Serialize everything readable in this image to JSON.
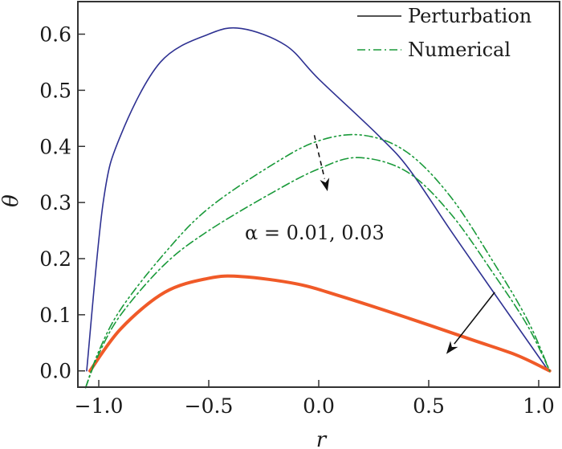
{
  "chart_data": {
    "type": "line",
    "xlabel": "r",
    "ylabel": "θ",
    "xlim": [
      -1.095,
      1.095
    ],
    "ylim": [
      -0.029,
      0.658
    ],
    "xticks": [
      -1.0,
      -0.5,
      0.0,
      0.5,
      1.0
    ],
    "xtick_labels": [
      "−1.0",
      "−0.5",
      "0.0",
      "0.5",
      "1.0"
    ],
    "yticks": [
      0.0,
      0.1,
      0.2,
      0.3,
      0.4,
      0.5,
      0.6
    ],
    "ytick_labels": [
      "0.0",
      "0.1",
      "0.2",
      "0.3",
      "0.4",
      "0.5",
      "0.6"
    ],
    "grid": false,
    "legend_position": "top-right",
    "legend": [
      {
        "label": "Perturbation",
        "style": "solid",
        "color": "#1a1a1a"
      },
      {
        "label": "Numerical",
        "style": "dashdot",
        "color": "#1a9a3a"
      }
    ],
    "annotation": "α = 0.01, 0.03",
    "series": [
      {
        "color": "#2e3192",
        "style": "solid",
        "width": 1.6,
        "x": [
          -1.055,
          -0.98,
          -0.9,
          -0.72,
          -0.5,
          -0.35,
          -0.15,
          0.0,
          0.27,
          0.41,
          0.6,
          0.8,
          1.045
        ],
        "y": [
          0.0,
          0.3,
          0.42,
          0.55,
          0.6,
          0.61,
          0.58,
          0.52,
          0.42,
          0.36,
          0.25,
          0.137,
          0.0
        ]
      },
      {
        "color": "#f05a28",
        "style": "solid",
        "width": 4,
        "x": [
          -1.04,
          -0.9,
          -0.7,
          -0.5,
          -0.35,
          -0.1,
          0.1,
          0.4,
          0.7,
          0.9,
          1.05
        ],
        "y": [
          0.0,
          0.075,
          0.14,
          0.165,
          0.168,
          0.155,
          0.133,
          0.095,
          0.055,
          0.028,
          0.0
        ]
      },
      {
        "color": "#1a9a3a",
        "style": "dashdot",
        "width": 1.6,
        "x": [
          -1.06,
          -1.0,
          -0.9,
          -0.7,
          -0.5,
          -0.2,
          0.0,
          0.18,
          0.4,
          0.6,
          0.8,
          0.95,
          1.05
        ],
        "y": [
          -0.03,
          0.03,
          0.1,
          0.19,
          0.25,
          0.32,
          0.36,
          0.38,
          0.355,
          0.28,
          0.17,
          0.08,
          0.0
        ]
      },
      {
        "color": "#1a9a3a",
        "style": "dashdotdot",
        "width": 1.6,
        "x": [
          -1.06,
          -1.0,
          -0.9,
          -0.7,
          -0.5,
          -0.2,
          0.0,
          0.2,
          0.4,
          0.6,
          0.8,
          0.95,
          1.05
        ],
        "y": [
          -0.03,
          0.035,
          0.11,
          0.21,
          0.29,
          0.37,
          0.41,
          0.42,
          0.39,
          0.31,
          0.19,
          0.09,
          0.0
        ]
      }
    ],
    "arrows": [
      {
        "style": "dashed",
        "from": [
          -0.02,
          0.42
        ],
        "to": [
          0.04,
          0.32
        ]
      },
      {
        "style": "solid",
        "from": [
          0.8,
          0.14
        ],
        "to": [
          0.58,
          0.03
        ]
      }
    ]
  }
}
